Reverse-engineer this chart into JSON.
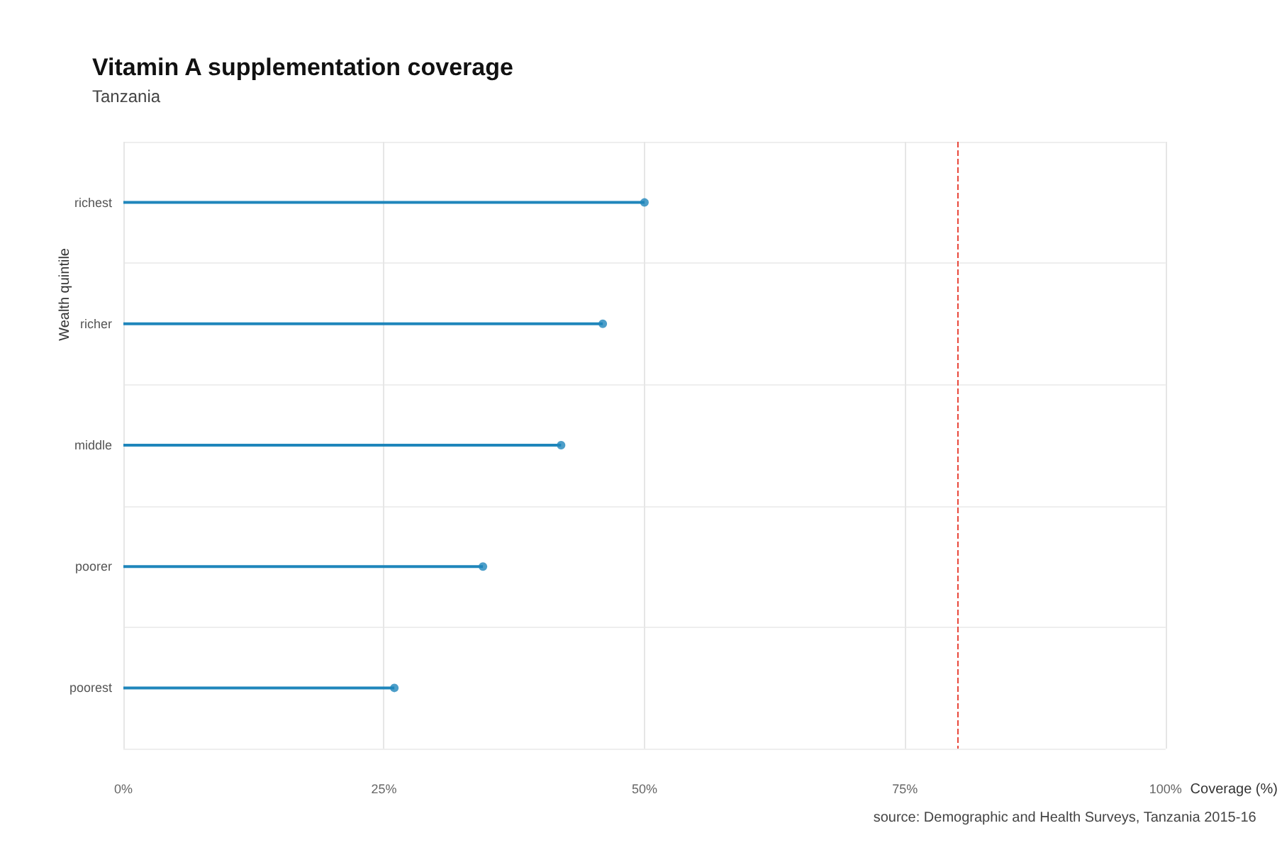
{
  "chart_data": {
    "type": "lollipop",
    "orientation": "horizontal",
    "title": "Vitamin A supplementation coverage",
    "subtitle": "Tanzania",
    "xlabel": "Coverage (%)",
    "ylabel": "Wealth quintile",
    "categories": [
      "richest",
      "richer",
      "middle",
      "poorer",
      "poorest"
    ],
    "series": [
      {
        "color": "#1f86bb",
        "values": [
          50,
          46,
          42,
          34.5,
          26
        ]
      }
    ],
    "xlim": [
      0,
      100
    ],
    "xticks": [
      {
        "value": 0,
        "label": "0%"
      },
      {
        "value": 25,
        "label": "25%"
      },
      {
        "value": 50,
        "label": "50%"
      },
      {
        "value": 75,
        "label": "75%"
      },
      {
        "value": 100,
        "label": "100%"
      }
    ],
    "ref_lines": [
      {
        "axis": "x",
        "value": 80,
        "color": "#e8473a",
        "line_style": "dashed"
      }
    ],
    "grid": true,
    "marker": "circle",
    "annotations": [
      "source: Demographic and Health Surveys, Tanzania 2015-16"
    ]
  }
}
